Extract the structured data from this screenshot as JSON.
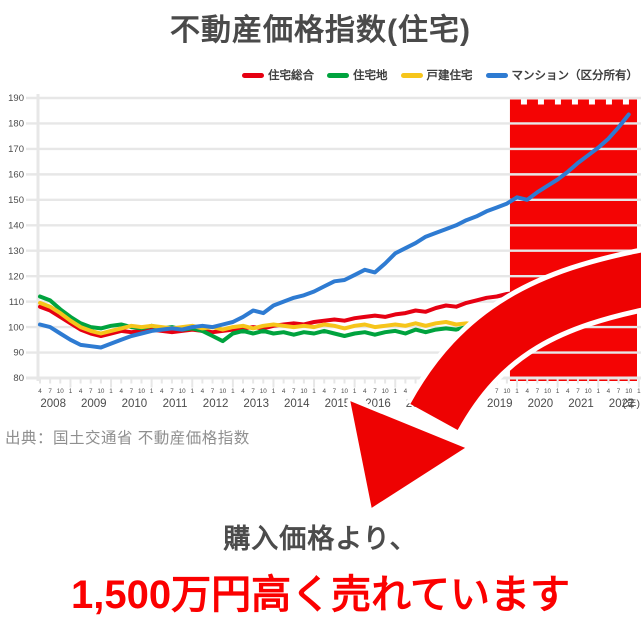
{
  "title": "不動産価格指数(住宅)",
  "legend": {
    "items": [
      {
        "key": "jutaku-sogo",
        "label": "住宅総合",
        "color": "#e60012"
      },
      {
        "key": "jutakuchi",
        "label": "住宅地",
        "color": "#00a33e"
      },
      {
        "key": "kodate-jutaku",
        "label": "戸建住宅",
        "color": "#f6c51b"
      },
      {
        "key": "mansion",
        "label": "マンション（区分所有）",
        "color": "#2e7bd2"
      }
    ]
  },
  "source": "出典：国土交通省 不動産価格指数",
  "message": {
    "line1": "購入価格より、",
    "line2": "1,500万円高く売れています"
  },
  "colors": {
    "accent_red": "#fb0000",
    "highlight": "#f40404",
    "arrow": "#ee0202",
    "gridline": "#e7e7e7",
    "axis_text": "#4c4c4c"
  },
  "chart_data": {
    "type": "line",
    "title": "不動産価格指数(住宅)",
    "ylim": [
      80,
      190
    ],
    "ytick_step": 10,
    "x_start": "2008-04",
    "x_interval": "quarterly",
    "years": [
      2008,
      2009,
      2010,
      2011,
      2012,
      2013,
      2014,
      2015,
      2016,
      2017,
      2018,
      2019,
      2020,
      2021,
      2022
    ],
    "quarter_labels": [
      "4",
      "7",
      "10",
      "1"
    ],
    "unit_label": "(年)",
    "grid": true,
    "legend_position": "top-right",
    "highlight": {
      "from_index": 46.3,
      "color": "#f40404"
    },
    "series": [
      {
        "name": "住宅総合",
        "key": "jutaku-sogo",
        "color": "#e60012",
        "values": [
          108,
          106.5,
          104,
          101.5,
          99,
          97.5,
          96.5,
          97.5,
          98.5,
          98,
          98.5,
          99,
          98.5,
          98,
          98.5,
          99,
          98.5,
          98,
          98.5,
          99,
          99.5,
          100,
          99.5,
          100.5,
          101,
          101.5,
          101,
          102,
          102.5,
          103,
          102.5,
          103.5,
          104,
          104.5,
          104,
          105,
          105.5,
          106.5,
          106,
          107.5,
          108.5,
          108,
          109.5,
          110.5,
          111.5,
          112,
          113,
          113.5,
          111,
          112.5,
          113.5,
          114.5,
          115.5,
          116.5,
          117,
          118,
          119,
          120.5,
          119.5
        ]
      },
      {
        "name": "住宅地",
        "key": "jutakuchi",
        "color": "#00a33e",
        "values": [
          112,
          110.5,
          107,
          104,
          101.5,
          100,
          99.5,
          100.5,
          101,
          100,
          99.5,
          100.5,
          99.5,
          100,
          99,
          99.5,
          98.5,
          96.5,
          94.5,
          97.5,
          98.5,
          97.5,
          98.5,
          97.5,
          98,
          97,
          98,
          97.5,
          98.5,
          97.5,
          96.5,
          97.5,
          98,
          97,
          98,
          98.5,
          97.5,
          99,
          98,
          99,
          99.5,
          99,
          100,
          99.5,
          100,
          99.5,
          100,
          99.5,
          94.5,
          98.5,
          99.5,
          100.5,
          101.5,
          103,
          104.5,
          105.5,
          107,
          109.5,
          111
        ]
      },
      {
        "name": "戸建住宅",
        "key": "kodate-jutaku",
        "color": "#f6c51b",
        "values": [
          109.5,
          108,
          105.5,
          102.5,
          100,
          98.5,
          97.5,
          98.5,
          99.5,
          100.5,
          100,
          100.5,
          100,
          99.5,
          100,
          100.5,
          99.5,
          100,
          99,
          100,
          100.5,
          99.5,
          100.5,
          101,
          100.5,
          100,
          100.5,
          100,
          101,
          100.5,
          99.5,
          100.5,
          101,
          100,
          100.5,
          101,
          100.5,
          101.5,
          100.5,
          101.5,
          102,
          101,
          101.5,
          101,
          101.5,
          101,
          101.5,
          100.5,
          98.5,
          101,
          102.5,
          104,
          105.5,
          107.5,
          109,
          111,
          113,
          115.5,
          113.5
        ]
      },
      {
        "name": "マンション（区分所有）",
        "key": "mansion",
        "color": "#2e7bd2",
        "values": [
          101,
          100,
          97.5,
          95,
          93,
          92.5,
          92,
          93.5,
          95,
          96.5,
          97.5,
          98.5,
          99,
          99.5,
          99,
          100,
          100.5,
          100,
          101,
          102,
          104,
          106.5,
          105.5,
          108.5,
          110,
          111.5,
          112.5,
          114,
          116,
          118,
          118.5,
          120.5,
          122.5,
          121.5,
          125,
          129,
          131,
          133,
          135.5,
          137,
          138.5,
          140,
          142,
          143.5,
          145.5,
          147,
          148.5,
          151,
          150,
          153,
          155.5,
          158,
          161,
          164.5,
          167.5,
          170.5,
          174,
          178.5,
          183.5
        ]
      }
    ]
  }
}
